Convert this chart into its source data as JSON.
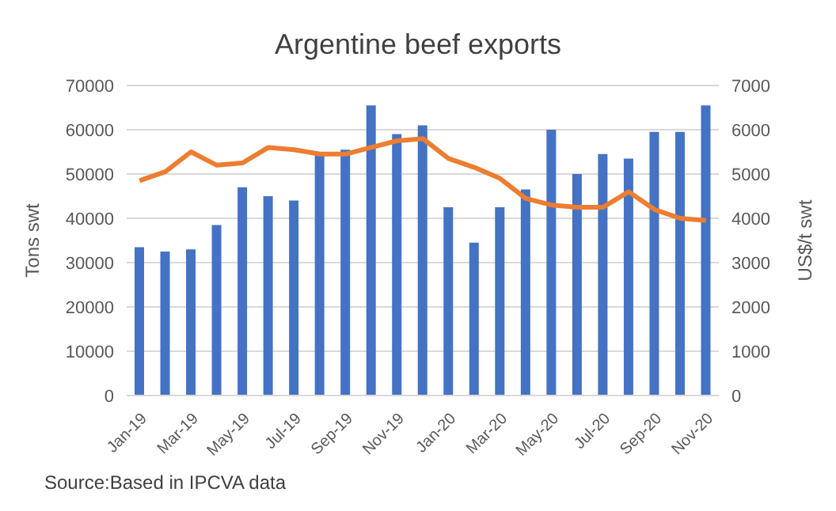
{
  "chart_data": {
    "type": "bar",
    "title": "Argentine beef exports",
    "ylabel": "Tons swt",
    "y2label": "US$/t swt",
    "categories": [
      "Jan-19",
      null,
      "Mar-19",
      null,
      "May-19",
      null,
      "Jul-19",
      null,
      "Sep-19",
      null,
      "Nov-19",
      null,
      "Jan-20",
      null,
      "Mar-20",
      null,
      "May-20",
      null,
      "Jul-20",
      null,
      "Sep-20",
      null,
      "Nov-20"
    ],
    "series": [
      {
        "color": "#4472c4",
        "values": [
          33500,
          32500,
          33000,
          38500,
          47000,
          45000,
          44000,
          54500,
          55500,
          65500,
          59000,
          61000,
          42500,
          34500,
          42500,
          46500,
          60000,
          50000,
          54500,
          53500,
          59500,
          59500,
          65500
        ]
      },
      {
        "type": "line",
        "axis": "y2",
        "color": "#ed7d31",
        "values": [
          4850,
          5050,
          5500,
          5200,
          5250,
          5600,
          5550,
          5450,
          5450,
          5600,
          5750,
          5800,
          5350,
          5150,
          4900,
          4450,
          4300,
          4250,
          4250,
          4600,
          4200,
          4000,
          3950
        ]
      }
    ],
    "ylim": [
      0,
      70000
    ],
    "yticks": [
      0,
      10000,
      20000,
      30000,
      40000,
      50000,
      60000,
      70000
    ],
    "y2lim": [
      0,
      7000
    ],
    "y2ticks": [
      0,
      1000,
      2000,
      3000,
      4000,
      5000,
      6000,
      7000
    ],
    "grid": "y",
    "legend": false,
    "marker": "none",
    "line_style": "solid",
    "annotations": [
      "Source:Based in IPCVA data"
    ]
  }
}
